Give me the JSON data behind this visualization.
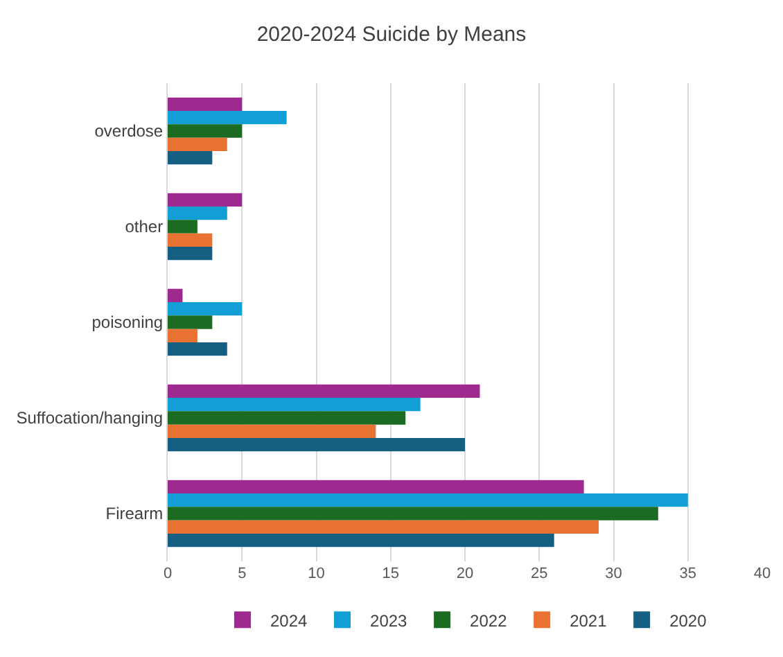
{
  "chart_data": {
    "type": "bar",
    "orientation": "horizontal",
    "title": "2020-2024 Suicide by Means",
    "categories": [
      "overdose",
      "other",
      "poisoning",
      "Suffocation/hanging",
      "Firearm"
    ],
    "series": [
      {
        "name": "2024",
        "color": "#9e2a8f",
        "values": [
          5,
          5,
          1,
          21,
          28
        ]
      },
      {
        "name": "2023",
        "color": "#119fd6",
        "values": [
          8,
          4,
          5,
          17,
          35
        ]
      },
      {
        "name": "2022",
        "color": "#1b6b23",
        "values": [
          5,
          2,
          3,
          16,
          33
        ]
      },
      {
        "name": "2021",
        "color": "#e97132",
        "values": [
          4,
          3,
          2,
          14,
          29
        ]
      },
      {
        "name": "2020",
        "color": "#156082",
        "values": [
          3,
          3,
          4,
          20,
          26
        ]
      }
    ],
    "xlim": [
      0,
      40
    ],
    "xticks": [
      0,
      5,
      10,
      15,
      20,
      25,
      30,
      35,
      40
    ],
    "grid": "x",
    "legend": "bottom"
  }
}
